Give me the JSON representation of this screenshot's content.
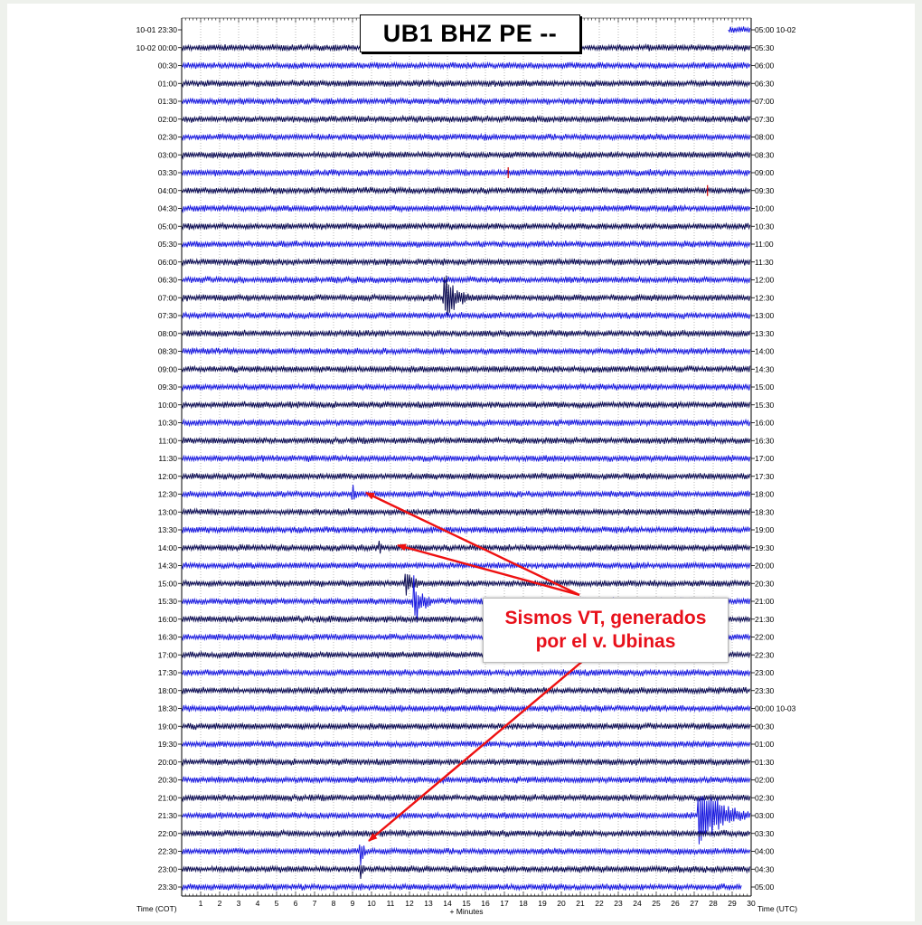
{
  "title": "UB1 BHZ PE --",
  "annotation": {
    "line1": "Sismos VT, generados",
    "line2": "por el v. Ubinas"
  },
  "colors": {
    "trace_dark": "#0b0b52",
    "trace_blue": "#1a1adf",
    "arrow": "#ee1111",
    "pick": "#cc0000"
  },
  "chart_data": {
    "type": "line",
    "title": "UB1 BHZ PE --",
    "xlabel": "+ Minutes",
    "xlim": [
      0,
      30
    ],
    "x_ticks": [
      "1",
      "2",
      "3",
      "4",
      "5",
      "6",
      "7",
      "8",
      "9",
      "10",
      "11",
      "12",
      "13",
      "14",
      "15",
      "16",
      "17",
      "18",
      "19",
      "20",
      "21",
      "22",
      "23",
      "24",
      "25",
      "26",
      "27",
      "28",
      "29",
      "30"
    ],
    "left_axis_label": "Time (COT)",
    "right_axis_label": "Time (UTC)",
    "left_labels": [
      "10-01 23:30",
      "10-02 00:00",
      "00:30",
      "01:00",
      "01:30",
      "02:00",
      "02:30",
      "03:00",
      "03:30",
      "04:00",
      "04:30",
      "05:00",
      "05:30",
      "06:00",
      "06:30",
      "07:00",
      "07:30",
      "08:00",
      "08:30",
      "09:00",
      "09:30",
      "10:00",
      "10:30",
      "11:00",
      "11:30",
      "12:00",
      "12:30",
      "13:00",
      "13:30",
      "14:00",
      "14:30",
      "15:00",
      "15:30",
      "16:00",
      "16:30",
      "17:00",
      "17:30",
      "18:00",
      "18:30",
      "19:00",
      "19:30",
      "20:00",
      "20:30",
      "21:00",
      "21:30",
      "22:00",
      "22:30",
      "23:00",
      "23:30"
    ],
    "right_labels": [
      "05:00 10-02",
      "05:30",
      "06:00",
      "06:30",
      "07:00",
      "07:30",
      "08:00",
      "08:30",
      "09:00",
      "09:30",
      "10:00",
      "10:30",
      "11:00",
      "11:30",
      "12:00",
      "12:30",
      "13:00",
      "13:30",
      "14:00",
      "14:30",
      "15:00",
      "15:30",
      "16:00",
      "16:30",
      "17:00",
      "17:30",
      "18:00",
      "18:30",
      "19:00",
      "19:30",
      "20:00",
      "20:30",
      "21:00",
      "21:30",
      "22:00",
      "22:30",
      "23:00",
      "23:30",
      "00:00 10-03",
      "00:30",
      "01:00",
      "01:30",
      "02:00",
      "02:30",
      "03:00",
      "03:30",
      "04:00",
      "04:30",
      "05:00"
    ],
    "events": [
      {
        "row": 15,
        "minute": 13.8,
        "duration": 1.6,
        "amplitude": 1.6
      },
      {
        "row": 26,
        "minute": 9.0,
        "duration": 0.25,
        "amplitude": 1.1
      },
      {
        "row": 29,
        "minute": 10.4,
        "duration": 0.3,
        "amplitude": 0.5
      },
      {
        "row": 31,
        "minute": 11.8,
        "duration": 0.9,
        "amplitude": 1.0
      },
      {
        "row": 32,
        "minute": 12.2,
        "duration": 1.1,
        "amplitude": 1.7
      },
      {
        "row": 44,
        "minute": 27.2,
        "duration": 3.0,
        "amplitude": 2.2
      },
      {
        "row": 46,
        "minute": 9.4,
        "duration": 0.3,
        "amplitude": 1.5
      },
      {
        "row": 47,
        "minute": 9.4,
        "duration": 0.25,
        "amplitude": 0.8
      }
    ]
  }
}
